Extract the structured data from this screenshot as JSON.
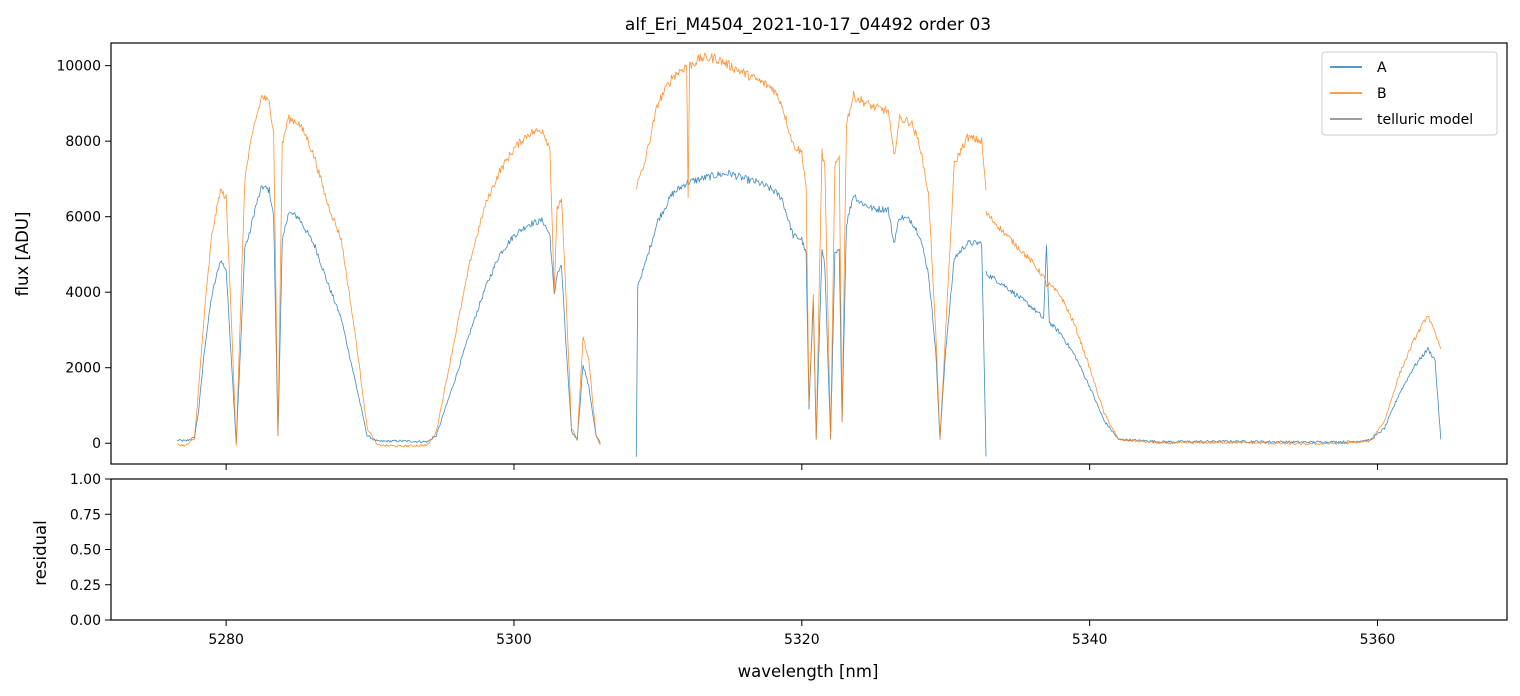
{
  "chart_data": [
    {
      "panel": "flux",
      "type": "line",
      "title": "alf_Eri_M4504_2021-10-17_04492  order 03",
      "xlabel": "",
      "ylabel": "flux [ADU]",
      "xlim": [
        5272,
        5369
      ],
      "ylim": [
        -550,
        10600
      ],
      "yticks": [
        0,
        2000,
        4000,
        6000,
        8000,
        10000
      ],
      "ytick_labels": [
        "0",
        "2000",
        "4000",
        "6000",
        "8000",
        "10000"
      ],
      "xticks": [
        5280,
        5300,
        5320,
        5340,
        5360
      ],
      "grid": false,
      "legend_position": "top-right",
      "series": [
        {
          "name": "A",
          "color": "#1f77b4",
          "points": [
            [
              5276.6,
              80
            ],
            [
              5277.2,
              60
            ],
            [
              5277.8,
              150
            ],
            [
              5278.1,
              900
            ],
            [
              5278.5,
              2500
            ],
            [
              5279.0,
              3900
            ],
            [
              5279.6,
              4850
            ],
            [
              5280.0,
              4600
            ],
            [
              5280.4,
              2000
            ],
            [
              5280.7,
              0
            ],
            [
              5281.0,
              2500
            ],
            [
              5281.3,
              5200
            ],
            [
              5281.6,
              5500
            ],
            [
              5282.0,
              6200
            ],
            [
              5282.5,
              6800
            ],
            [
              5283.0,
              6700
            ],
            [
              5283.3,
              6000
            ],
            [
              5283.6,
              200
            ],
            [
              5283.9,
              5300
            ],
            [
              5284.3,
              6100
            ],
            [
              5285.0,
              6000
            ],
            [
              5285.6,
              5600
            ],
            [
              5286.2,
              5200
            ],
            [
              5287.0,
              4300
            ],
            [
              5288.0,
              3300
            ],
            [
              5289.0,
              1600
            ],
            [
              5289.8,
              200
            ],
            [
              5290.5,
              50
            ],
            [
              5292.0,
              60
            ],
            [
              5294.0,
              40
            ],
            [
              5294.6,
              200
            ],
            [
              5296.0,
              1800
            ],
            [
              5297.0,
              3000
            ],
            [
              5298.0,
              4100
            ],
            [
              5299.0,
              5000
            ],
            [
              5300.0,
              5500
            ],
            [
              5301.0,
              5800
            ],
            [
              5302.0,
              5900
            ],
            [
              5302.5,
              5500
            ],
            [
              5302.8,
              3900
            ],
            [
              5303.0,
              4500
            ],
            [
              5303.3,
              4700
            ],
            [
              5303.6,
              2700
            ],
            [
              5304.0,
              300
            ],
            [
              5304.4,
              100
            ],
            [
              5304.8,
              2100
            ],
            [
              5305.2,
              1500
            ],
            [
              5305.7,
              200
            ],
            [
              5306.0,
              0
            ]
          ]
        },
        {
          "name": "A",
          "color": "#1f77b4",
          "points": [
            [
              5308.5,
              -350
            ],
            [
              5308.6,
              4200
            ],
            [
              5309.0,
              4600
            ],
            [
              5310.0,
              5900
            ],
            [
              5311.0,
              6600
            ],
            [
              5312.0,
              6900
            ],
            [
              5313.0,
              7000
            ],
            [
              5314.0,
              7100
            ],
            [
              5315.0,
              7150
            ],
            [
              5316.0,
              7000
            ],
            [
              5317.0,
              6900
            ],
            [
              5318.0,
              6700
            ],
            [
              5318.6,
              6500
            ],
            [
              5319.4,
              5500
            ],
            [
              5320.0,
              5400
            ],
            [
              5320.3,
              5000
            ],
            [
              5320.5,
              900
            ],
            [
              5320.8,
              3800
            ],
            [
              5321.0,
              100
            ],
            [
              5321.4,
              5100
            ],
            [
              5321.6,
              4700
            ],
            [
              5322.0,
              100
            ],
            [
              5322.3,
              5000
            ],
            [
              5322.6,
              5100
            ],
            [
              5322.8,
              600
            ],
            [
              5323.1,
              5800
            ],
            [
              5323.6,
              6600
            ],
            [
              5324.0,
              6400
            ],
            [
              5325.0,
              6200
            ],
            [
              5326.0,
              6200
            ],
            [
              5326.4,
              5300
            ],
            [
              5326.8,
              6000
            ],
            [
              5327.6,
              5900
            ],
            [
              5328.2,
              5500
            ],
            [
              5328.8,
              4500
            ],
            [
              5329.3,
              2500
            ],
            [
              5329.6,
              100
            ],
            [
              5330.0,
              2500
            ],
            [
              5330.6,
              4900
            ],
            [
              5331.5,
              5300
            ],
            [
              5332.5,
              5300
            ],
            [
              5332.8,
              -350
            ]
          ]
        },
        {
          "name": "A",
          "color": "#1f77b4",
          "points": [
            [
              5332.8,
              4500
            ],
            [
              5334.0,
              4200
            ],
            [
              5335.0,
              3900
            ],
            [
              5336.0,
              3600
            ],
            [
              5336.8,
              3300
            ],
            [
              5337.0,
              5200
            ],
            [
              5337.2,
              3200
            ],
            [
              5338.0,
              2900
            ],
            [
              5339.0,
              2300
            ],
            [
              5340.0,
              1500
            ],
            [
              5341.0,
              600
            ],
            [
              5342.0,
              100
            ],
            [
              5345.0,
              40
            ],
            [
              5350.0,
              50
            ],
            [
              5355.0,
              30
            ],
            [
              5358.0,
              40
            ],
            [
              5359.5,
              80
            ],
            [
              5360.5,
              400
            ],
            [
              5361.5,
              1300
            ],
            [
              5362.5,
              2000
            ],
            [
              5363.5,
              2500
            ],
            [
              5364.0,
              2200
            ],
            [
              5364.4,
              100
            ]
          ]
        },
        {
          "name": "B",
          "color": "#ff7f0e",
          "points": [
            [
              5276.6,
              -40
            ],
            [
              5277.2,
              -60
            ],
            [
              5277.8,
              120
            ],
            [
              5278.1,
              1500
            ],
            [
              5278.5,
              3500
            ],
            [
              5279.0,
              5500
            ],
            [
              5279.6,
              6700
            ],
            [
              5280.0,
              6500
            ],
            [
              5280.4,
              3000
            ],
            [
              5280.7,
              -50
            ],
            [
              5281.0,
              3500
            ],
            [
              5281.3,
              7000
            ],
            [
              5281.6,
              7700
            ],
            [
              5282.0,
              8500
            ],
            [
              5282.5,
              9200
            ],
            [
              5283.0,
              9000
            ],
            [
              5283.3,
              8300
            ],
            [
              5283.6,
              200
            ],
            [
              5283.9,
              7900
            ],
            [
              5284.3,
              8600
            ],
            [
              5285.0,
              8500
            ],
            [
              5285.6,
              8100
            ],
            [
              5286.2,
              7500
            ],
            [
              5287.0,
              6400
            ],
            [
              5288.0,
              5400
            ],
            [
              5289.0,
              2800
            ],
            [
              5289.8,
              400
            ],
            [
              5290.5,
              -50
            ],
            [
              5292.0,
              -80
            ],
            [
              5294.0,
              -50
            ],
            [
              5294.6,
              300
            ],
            [
              5296.0,
              3000
            ],
            [
              5297.0,
              4900
            ],
            [
              5298.0,
              6300
            ],
            [
              5299.0,
              7200
            ],
            [
              5300.0,
              7800
            ],
            [
              5301.0,
              8200
            ],
            [
              5302.0,
              8300
            ],
            [
              5302.5,
              7800
            ],
            [
              5302.8,
              4000
            ],
            [
              5303.0,
              6200
            ],
            [
              5303.3,
              6500
            ],
            [
              5303.6,
              4000
            ],
            [
              5304.0,
              400
            ],
            [
              5304.4,
              100
            ],
            [
              5304.8,
              2800
            ],
            [
              5305.2,
              2200
            ],
            [
              5305.7,
              200
            ],
            [
              5306.0,
              -50
            ]
          ]
        },
        {
          "name": "B",
          "color": "#ff7f0e",
          "points": [
            [
              5308.5,
              6800
            ],
            [
              5309.0,
              7300
            ],
            [
              5310.0,
              9000
            ],
            [
              5311.0,
              9700
            ],
            [
              5312.0,
              10000
            ],
            [
              5312.1,
              6500
            ],
            [
              5312.2,
              10000
            ],
            [
              5313.0,
              10200
            ],
            [
              5314.0,
              10200
            ],
            [
              5315.0,
              10000
            ],
            [
              5316.0,
              9800
            ],
            [
              5317.0,
              9600
            ],
            [
              5318.0,
              9400
            ],
            [
              5318.6,
              9000
            ],
            [
              5319.4,
              7900
            ],
            [
              5320.0,
              7700
            ],
            [
              5320.3,
              6800
            ],
            [
              5320.5,
              1000
            ],
            [
              5320.8,
              4000
            ],
            [
              5321.0,
              100
            ],
            [
              5321.4,
              7700
            ],
            [
              5321.6,
              7300
            ],
            [
              5322.0,
              100
            ],
            [
              5322.3,
              7300
            ],
            [
              5322.6,
              7600
            ],
            [
              5322.8,
              600
            ],
            [
              5323.1,
              8500
            ],
            [
              5323.6,
              9200
            ],
            [
              5324.0,
              9100
            ],
            [
              5325.0,
              8900
            ],
            [
              5326.0,
              8800
            ],
            [
              5326.4,
              7600
            ],
            [
              5326.8,
              8600
            ],
            [
              5327.6,
              8500
            ],
            [
              5328.2,
              7900
            ],
            [
              5328.8,
              6600
            ],
            [
              5329.3,
              3000
            ],
            [
              5329.6,
              100
            ],
            [
              5330.0,
              3000
            ],
            [
              5330.6,
              7400
            ],
            [
              5331.5,
              8100
            ],
            [
              5332.5,
              8000
            ],
            [
              5332.8,
              6700
            ]
          ]
        },
        {
          "name": "B",
          "color": "#ff7f0e",
          "points": [
            [
              5332.8,
              6100
            ],
            [
              5334.0,
              5600
            ],
            [
              5335.0,
              5200
            ],
            [
              5336.0,
              4800
            ],
            [
              5336.8,
              4400
            ],
            [
              5337.0,
              4200
            ],
            [
              5337.2,
              4200
            ],
            [
              5338.0,
              3900
            ],
            [
              5339.0,
              3100
            ],
            [
              5340.0,
              2000
            ],
            [
              5341.0,
              800
            ],
            [
              5342.0,
              100
            ],
            [
              5345.0,
              0
            ],
            [
              5350.0,
              20
            ],
            [
              5355.0,
              -20
            ],
            [
              5358.0,
              0
            ],
            [
              5359.5,
              60
            ],
            [
              5360.5,
              600
            ],
            [
              5361.5,
              1800
            ],
            [
              5362.5,
              2700
            ],
            [
              5363.5,
              3400
            ],
            [
              5364.0,
              2900
            ],
            [
              5364.4,
              2500
            ]
          ]
        },
        {
          "name": "telluric model",
          "color": "#7f7f7f",
          "points": []
        }
      ]
    },
    {
      "panel": "residual",
      "type": "line",
      "title": "",
      "xlabel": "wavelength [nm]",
      "ylabel": "residual",
      "xlim": [
        5272,
        5369
      ],
      "ylim": [
        0,
        1
      ],
      "yticks": [
        0,
        0.25,
        0.5,
        0.75,
        1.0
      ],
      "ytick_labels": [
        "0.00",
        "0.25",
        "0.50",
        "0.75",
        "1.00"
      ],
      "xticks": [
        5280,
        5300,
        5320,
        5340,
        5360
      ],
      "xtick_labels": [
        "5280",
        "5300",
        "5320",
        "5340",
        "5360"
      ],
      "grid": false,
      "series": []
    }
  ]
}
